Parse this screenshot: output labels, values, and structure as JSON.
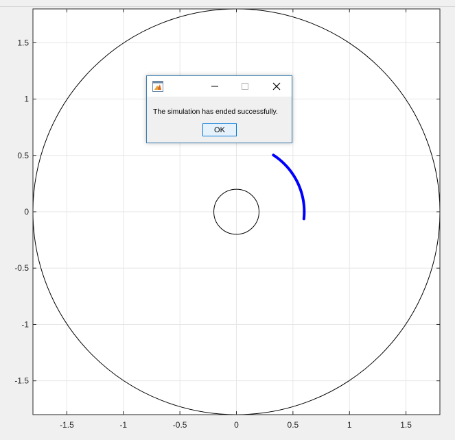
{
  "dialog": {
    "message": "The simulation has ended successfully.",
    "ok_label": "OK",
    "icon": "matlab-icon"
  },
  "chart_data": {
    "type": "line",
    "xlim": [
      -1.8,
      1.8
    ],
    "ylim": [
      -1.8,
      1.8
    ],
    "grid": true,
    "xticks": [
      "-1.5",
      "-1",
      "-0.5",
      "0",
      "0.5",
      "1",
      "1.5"
    ],
    "xtick_values": [
      -1.5,
      -1,
      -0.5,
      0,
      0.5,
      1,
      1.5
    ],
    "yticks": [
      "1.5",
      "1",
      "0.5",
      "0",
      "-0.5",
      "-1",
      "-1.5"
    ],
    "ytick_values": [
      1.5,
      1,
      0.5,
      0,
      -0.5,
      -1,
      -1.5
    ],
    "series": [
      {
        "kind": "circle",
        "center": [
          0,
          0
        ],
        "radius": 1.8,
        "color": "#000000"
      },
      {
        "kind": "circle",
        "center": [
          0,
          0
        ],
        "radius": 0.2,
        "color": "#000000"
      },
      {
        "kind": "arc",
        "center": [
          0,
          0
        ],
        "radius": 0.6,
        "start_deg": 57,
        "end_deg": -6,
        "color": "#0000ff"
      }
    ]
  }
}
